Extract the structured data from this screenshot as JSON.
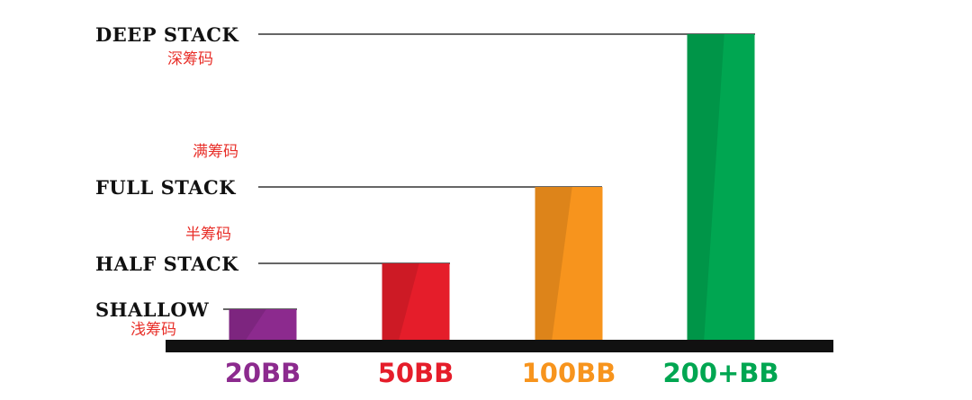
{
  "chart_data": {
    "type": "bar",
    "categories": [
      "20BB",
      "50BB",
      "100BB",
      "200+BB"
    ],
    "values": [
      20,
      50,
      100,
      200
    ],
    "colors": [
      "#8c2a8e",
      "#e51d2a",
      "#f7941d",
      "#00a651"
    ],
    "reference_levels": [
      {
        "label": "DEEP STACK",
        "label_cn": "深筹码",
        "value": 200
      },
      {
        "label": "FULL STACK",
        "label_cn": "满筹码",
        "value": 100
      },
      {
        "label": "HALF STACK",
        "label_cn": "半筹码",
        "value": 50
      },
      {
        "label": "SHALLOW",
        "label_cn": "浅筹码",
        "value": 20
      }
    ],
    "title": "",
    "xlabel": "",
    "ylabel": "",
    "ylim": [
      0,
      200
    ],
    "grid": false,
    "legend": "none"
  }
}
